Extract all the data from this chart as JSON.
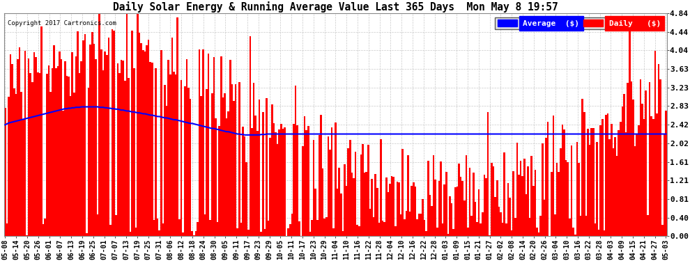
{
  "title": "Daily Solar Energy & Running Average Value Last 365 Days  Mon May 8 19:57",
  "bar_color": "#ff0000",
  "avg_line_color": "#0000ff",
  "bg_color": "#ffffff",
  "grid_color": "#bbbbbb",
  "yticks": [
    0.0,
    0.4,
    0.81,
    1.21,
    1.61,
    2.02,
    2.42,
    2.83,
    3.23,
    3.63,
    4.04,
    4.44,
    4.84
  ],
  "ylim": [
    0.0,
    4.84
  ],
  "legend_avg_label": "Average  ($)",
  "legend_daily_label": "Daily   ($)",
  "copyright_text": "Copyright 2017 Cartronics.com",
  "xtick_labels": [
    "05-08",
    "05-14",
    "05-20",
    "05-26",
    "06-01",
    "06-07",
    "06-13",
    "06-19",
    "06-25",
    "07-01",
    "07-07",
    "07-13",
    "07-19",
    "07-25",
    "07-31",
    "08-06",
    "08-12",
    "08-18",
    "08-24",
    "08-30",
    "09-05",
    "09-11",
    "09-17",
    "09-23",
    "09-29",
    "10-05",
    "10-11",
    "10-17",
    "10-23",
    "10-29",
    "11-04",
    "11-10",
    "11-16",
    "11-22",
    "11-28",
    "12-04",
    "12-10",
    "12-16",
    "12-22",
    "12-28",
    "01-03",
    "01-09",
    "01-15",
    "01-21",
    "01-27",
    "02-02",
    "02-08",
    "02-14",
    "02-20",
    "02-26",
    "03-04",
    "03-10",
    "03-16",
    "03-22",
    "03-28",
    "04-03",
    "04-09",
    "04-15",
    "04-21",
    "04-27",
    "05-03"
  ],
  "num_days": 365,
  "avg_line": [
    2.42,
    2.44,
    2.46,
    2.47,
    2.48,
    2.49,
    2.5,
    2.51,
    2.52,
    2.53,
    2.54,
    2.55,
    2.56,
    2.57,
    2.58,
    2.59,
    2.6,
    2.61,
    2.62,
    2.63,
    2.64,
    2.65,
    2.66,
    2.67,
    2.68,
    2.69,
    2.7,
    2.71,
    2.72,
    2.73,
    2.74,
    2.75,
    2.76,
    2.77,
    2.77,
    2.78,
    2.78,
    2.79,
    2.79,
    2.8,
    2.8,
    2.8,
    2.81,
    2.81,
    2.81,
    2.81,
    2.81,
    2.81,
    2.81,
    2.81,
    2.81,
    2.81,
    2.8,
    2.8,
    2.8,
    2.79,
    2.79,
    2.78,
    2.78,
    2.77,
    2.77,
    2.76,
    2.76,
    2.75,
    2.74,
    2.74,
    2.73,
    2.72,
    2.72,
    2.71,
    2.7,
    2.7,
    2.69,
    2.68,
    2.68,
    2.67,
    2.66,
    2.66,
    2.65,
    2.64,
    2.63,
    2.63,
    2.62,
    2.61,
    2.6,
    2.6,
    2.59,
    2.58,
    2.57,
    2.57,
    2.56,
    2.55,
    2.54,
    2.53,
    2.53,
    2.52,
    2.51,
    2.5,
    2.49,
    2.48,
    2.47,
    2.46,
    2.45,
    2.45,
    2.44,
    2.43,
    2.42,
    2.41,
    2.4,
    2.39,
    2.38,
    2.37,
    2.36,
    2.35,
    2.34,
    2.34,
    2.33,
    2.32,
    2.31,
    2.3,
    2.29,
    2.28,
    2.27,
    2.27,
    2.26,
    2.25,
    2.24,
    2.23,
    2.22,
    2.22,
    2.21,
    2.21,
    2.2,
    2.2,
    2.2,
    2.2,
    2.2,
    2.2,
    2.2,
    2.2,
    2.2,
    2.21,
    2.21,
    2.21,
    2.22,
    2.22,
    2.22,
    2.22,
    2.22,
    2.22,
    2.22,
    2.22,
    2.22,
    2.22,
    2.22,
    2.22,
    2.22,
    2.22,
    2.22,
    2.22,
    2.22,
    2.22,
    2.22,
    2.22,
    2.22,
    2.22,
    2.22,
    2.22,
    2.22,
    2.22,
    2.22,
    2.22,
    2.22,
    2.22,
    2.22,
    2.22,
    2.22,
    2.22,
    2.22,
    2.22,
    2.22,
    2.22,
    2.22,
    2.22,
    2.22,
    2.22,
    2.22,
    2.22,
    2.22,
    2.22,
    2.22,
    2.22,
    2.22,
    2.22,
    2.22,
    2.22,
    2.22,
    2.22,
    2.22,
    2.22,
    2.22,
    2.22,
    2.22,
    2.22,
    2.22,
    2.22,
    2.22,
    2.22,
    2.22,
    2.22,
    2.22,
    2.22,
    2.22,
    2.22,
    2.22,
    2.22,
    2.22,
    2.22,
    2.22,
    2.22,
    2.22,
    2.22,
    2.22,
    2.22,
    2.22,
    2.22,
    2.22,
    2.22,
    2.22,
    2.22,
    2.22,
    2.22,
    2.22,
    2.22,
    2.22,
    2.22,
    2.22,
    2.22,
    2.22,
    2.22,
    2.22,
    2.22,
    2.22,
    2.22,
    2.22,
    2.22,
    2.22,
    2.22,
    2.22,
    2.22,
    2.22,
    2.22,
    2.22,
    2.22,
    2.22,
    2.22,
    2.22,
    2.22,
    2.22,
    2.22,
    2.22,
    2.22,
    2.22,
    2.22,
    2.22,
    2.22,
    2.22,
    2.22,
    2.22,
    2.22,
    2.22,
    2.22,
    2.22,
    2.22,
    2.22,
    2.22,
    2.22,
    2.22,
    2.22,
    2.22,
    2.22,
    2.22,
    2.22,
    2.22,
    2.22,
    2.22,
    2.22,
    2.22,
    2.22,
    2.22,
    2.22,
    2.22,
    2.22,
    2.22,
    2.22,
    2.22,
    2.22,
    2.22,
    2.22,
    2.22,
    2.22,
    2.22,
    2.22,
    2.22,
    2.22,
    2.22,
    2.22,
    2.22,
    2.22,
    2.22,
    2.22,
    2.22,
    2.22,
    2.22,
    2.22,
    2.22,
    2.22,
    2.22,
    2.22,
    2.22,
    2.22,
    2.22,
    2.22,
    2.22,
    2.22,
    2.22,
    2.22,
    2.22,
    2.22,
    2.22,
    2.22,
    2.22,
    2.22,
    2.22,
    2.22,
    2.22,
    2.22,
    2.22,
    2.22,
    2.22,
    2.22,
    2.22,
    2.22,
    2.22,
    2.22,
    2.22,
    2.22,
    2.22,
    2.22,
    2.22,
    2.22,
    2.22,
    2.22,
    2.22,
    2.22,
    2.22,
    2.22,
    2.22,
    2.22,
    2.22,
    2.22,
    2.22,
    2.22,
    2.22,
    2.22
  ]
}
